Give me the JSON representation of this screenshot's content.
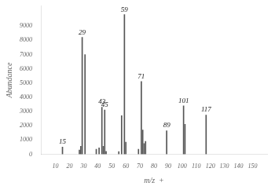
{
  "chart_data": {
    "type": "bar",
    "x": [
      15,
      27,
      28,
      29,
      31,
      39,
      41,
      43,
      44,
      45,
      46,
      55,
      57,
      59,
      60,
      69,
      71,
      72,
      73,
      74,
      89,
      101,
      102,
      117
    ],
    "values": [
      500,
      300,
      550,
      8200,
      7000,
      350,
      450,
      3300,
      550,
      3100,
      200,
      180,
      2700,
      9800,
      850,
      350,
      5100,
      1700,
      750,
      900,
      1650,
      3400,
      2100,
      2750
    ],
    "color": "#555555",
    "xlabel": "m/z  +",
    "ylabel": "Abundance",
    "xlim": [
      5,
      155
    ],
    "ylim": [
      0,
      10400
    ],
    "xticks": [
      10,
      20,
      30,
      40,
      50,
      60,
      70,
      80,
      90,
      100,
      110,
      120,
      130,
      140,
      150
    ],
    "yticks": [
      0,
      1000,
      2000,
      3000,
      4000,
      5000,
      6000,
      7000,
      8000,
      9000
    ],
    "grid": false,
    "annotations": [
      {
        "x": 15,
        "y": 500,
        "text": "15"
      },
      {
        "x": 29,
        "y": 8200,
        "text": "29"
      },
      {
        "x": 43,
        "y": 3300,
        "text": "43"
      },
      {
        "x": 45,
        "y": 3100,
        "text": "45"
      },
      {
        "x": 59,
        "y": 9800,
        "text": "59"
      },
      {
        "x": 71,
        "y": 5100,
        "text": "71"
      },
      {
        "x": 89,
        "y": 1650,
        "text": "89"
      },
      {
        "x": 101,
        "y": 3400,
        "text": "101"
      },
      {
        "x": 117,
        "y": 2750,
        "text": "117"
      }
    ]
  }
}
